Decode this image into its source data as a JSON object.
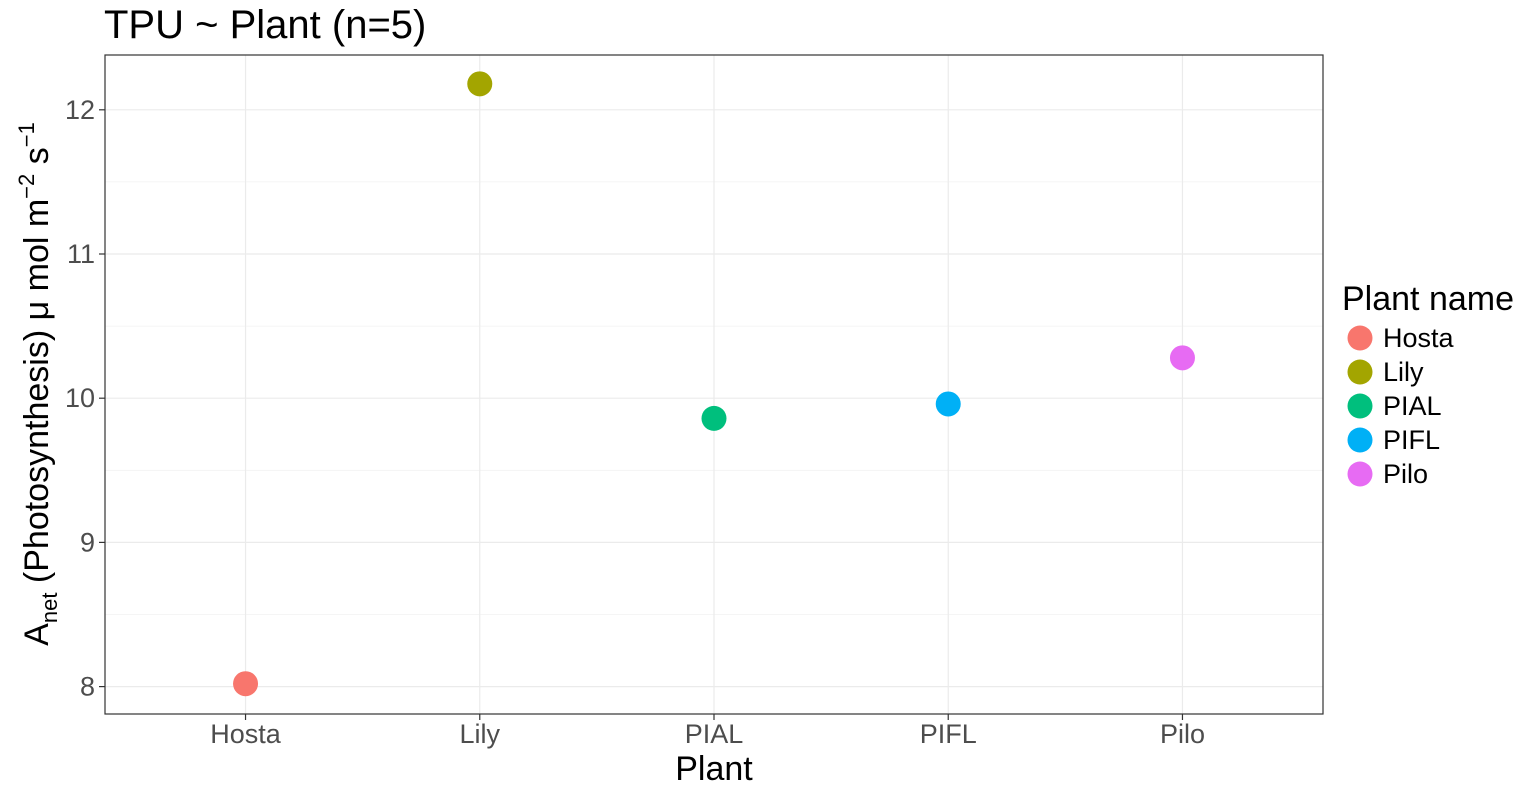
{
  "chart_data": {
    "type": "scatter",
    "title": "TPU ~ Plant (n=5)",
    "xlabel": "Plant",
    "ylabel": {
      "base": "A",
      "sub": "net",
      "rest": " (Photosynthesis) μ mol m",
      "sup1": "−2",
      "s": " s",
      "sup2": "−1"
    },
    "categories": [
      "Hosta",
      "Lily",
      "PIAL",
      "PIFL",
      "Pilo"
    ],
    "values": [
      8.02,
      12.18,
      9.86,
      9.96,
      10.28
    ],
    "ylim": [
      7.81,
      12.38
    ],
    "yticks": [
      8,
      9,
      10,
      11,
      12
    ],
    "grid": true,
    "legend": {
      "title": "Plant name",
      "position": "right",
      "items": [
        {
          "label": "Hosta",
          "color": "#F8766D"
        },
        {
          "label": "Lily",
          "color": "#A3A500"
        },
        {
          "label": "PIAL",
          "color": "#00BF7D"
        },
        {
          "label": "PIFL",
          "color": "#00B0F6"
        },
        {
          "label": "Pilo",
          "color": "#E76BF3"
        }
      ]
    }
  }
}
